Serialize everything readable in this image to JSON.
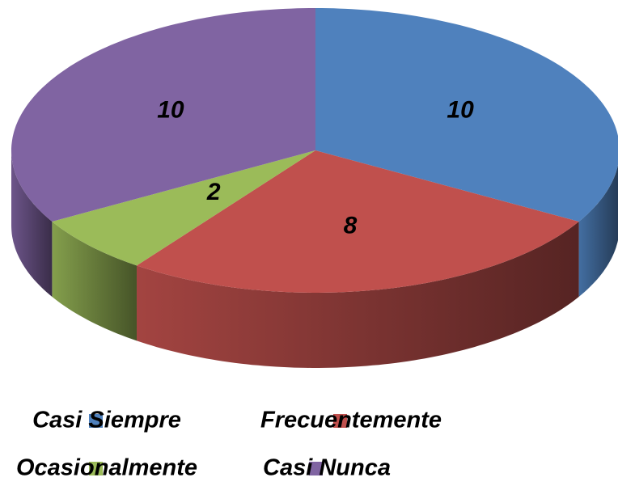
{
  "chart_data": {
    "type": "pie",
    "three_d": true,
    "categories": [
      "Casi Siempre",
      "Frecuentemente",
      "Ocasionalmente",
      "Casi Nunca"
    ],
    "values": [
      10,
      8,
      2,
      10
    ],
    "colors": [
      "#4f81bd",
      "#c0504d",
      "#9bbb59",
      "#8064a2"
    ],
    "legend": "bottom"
  }
}
